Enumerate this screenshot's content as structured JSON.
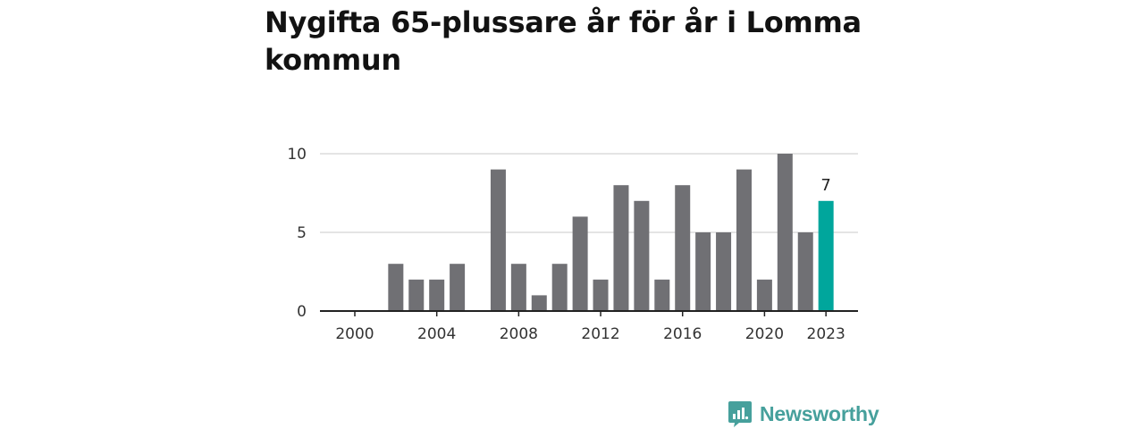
{
  "title": "Nygifta 65-plussare år för år i Lomma kommun",
  "brand": {
    "name": "Newsworthy",
    "color": "#46a09c"
  },
  "colors": {
    "bar": "#707074",
    "highlight": "#00a69c",
    "grid": "#dcdcdc",
    "axis": "#222222"
  },
  "chart_data": {
    "type": "bar",
    "title": "Nygifta 65-plussare år för år i Lomma kommun",
    "xlabel": "",
    "ylabel": "",
    "ylim": [
      0,
      10
    ],
    "y_ticks": [
      0,
      5,
      10
    ],
    "x_ticks": [
      2000,
      2004,
      2008,
      2012,
      2016,
      2020,
      2023
    ],
    "categories": [
      2000,
      2001,
      2002,
      2003,
      2004,
      2005,
      2006,
      2007,
      2008,
      2009,
      2010,
      2011,
      2012,
      2013,
      2014,
      2015,
      2016,
      2017,
      2018,
      2019,
      2020,
      2021,
      2022,
      2023
    ],
    "values": [
      0,
      0,
      3,
      2,
      2,
      3,
      0,
      9,
      3,
      1,
      3,
      6,
      2,
      8,
      7,
      2,
      8,
      5,
      5,
      9,
      2,
      10,
      5,
      7
    ],
    "highlight": {
      "category": 2023,
      "label": "7"
    },
    "grid": true
  }
}
